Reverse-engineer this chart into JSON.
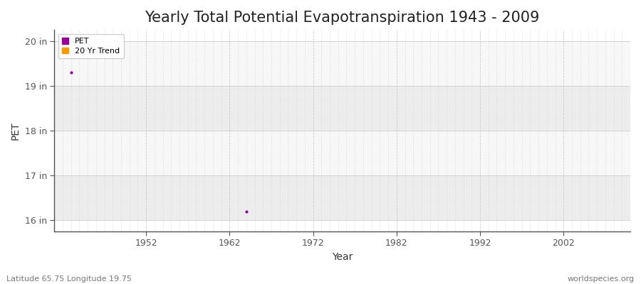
{
  "title": "Yearly Total Potential Evapotranspiration 1943 - 2009",
  "xlabel": "Year",
  "ylabel": "PET",
  "background_color": "#ffffff",
  "plot_bg_color": "#ffffff",
  "band_color_light": "#f5f5f5",
  "band_color_dark": "#e8e8e8",
  "grid_color": "#cccccc",
  "ylim": [
    15.75,
    20.25
  ],
  "xlim": [
    1941,
    2010
  ],
  "yticks": [
    16,
    17,
    18,
    19,
    20
  ],
  "ytick_labels": [
    "16 in",
    "17 in",
    "18 in",
    "19 in",
    "20 in"
  ],
  "xticks": [
    1952,
    1962,
    1972,
    1982,
    1992,
    2002
  ],
  "data_points": [
    {
      "year": 1943,
      "value": 19.3
    },
    {
      "year": 1964,
      "value": 16.2
    }
  ],
  "pet_color": "#990099",
  "trend_color": "#ff9900",
  "marker_size": 3,
  "legend_labels": [
    "PET",
    "20 Yr Trend"
  ],
  "footer_left": "Latitude 65.75 Longitude 19.75",
  "footer_right": "worldspecies.org",
  "title_fontsize": 15,
  "axis_label_fontsize": 10,
  "tick_fontsize": 9,
  "footer_fontsize": 8
}
